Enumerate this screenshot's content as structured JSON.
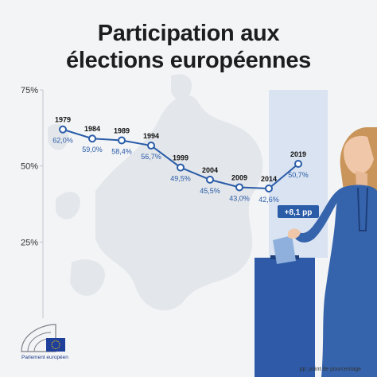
{
  "title_line1": "Participation aux",
  "title_line2": "élections européennes",
  "footnote": "pp: point de pourcentage",
  "logo_label": "Parlement européen",
  "colors": {
    "line": "#2a5ca8",
    "year_text": "#111111",
    "value_text": "#2a5ca8",
    "highlight_band": "#d3dff0",
    "badge_bg": "#2a5ca8",
    "badge_text": "#ffffff",
    "ballot_box": "#2e5aa8",
    "map": "#e3e6ea"
  },
  "badge": "+8,1 pp",
  "chart_data": {
    "type": "line",
    "title": "Participation aux élections européennes",
    "xlabel": "",
    "ylabel": "",
    "ylim": [
      0,
      75
    ],
    "y_ticks": [
      "75%",
      "50%",
      "25%"
    ],
    "y_tick_values": [
      75,
      50,
      25
    ],
    "grid": false,
    "series": [
      {
        "points": [
          {
            "year": "1979",
            "value": 62.0,
            "label": "62,0%"
          },
          {
            "year": "1984",
            "value": 59.0,
            "label": "59,0%"
          },
          {
            "year": "1989",
            "value": 58.4,
            "label": "58,4%"
          },
          {
            "year": "1994",
            "value": 56.7,
            "label": "56,7%"
          },
          {
            "year": "1999",
            "value": 49.5,
            "label": "49,5%"
          },
          {
            "year": "2004",
            "value": 45.5,
            "label": "45,5%"
          },
          {
            "year": "2009",
            "value": 43.0,
            "label": "43,0%"
          },
          {
            "year": "2014",
            "value": 42.6,
            "label": "42,6%"
          },
          {
            "year": "2019",
            "value": 50.7,
            "label": "50,7%"
          }
        ]
      }
    ],
    "annotations": [
      "+8,1 pp"
    ]
  }
}
